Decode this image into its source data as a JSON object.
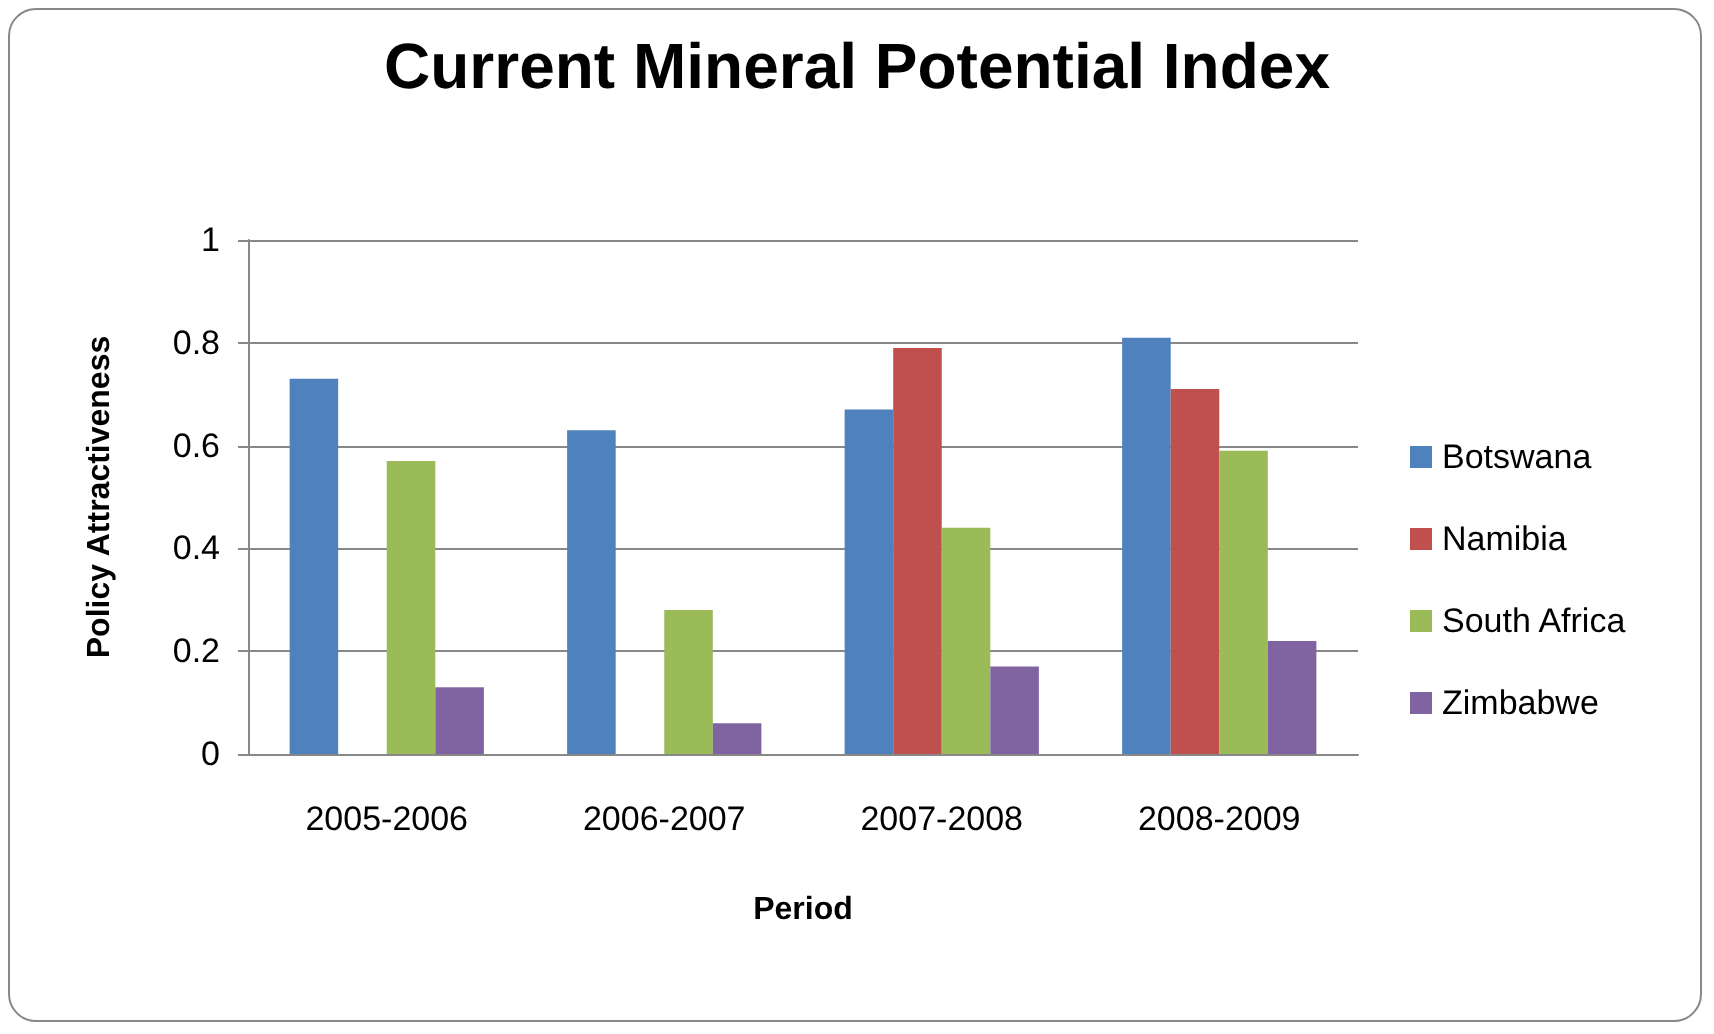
{
  "chart_data": {
    "type": "bar",
    "title": "Current Mineral Potential Index",
    "xlabel": "Period",
    "ylabel": "Policy Attractiveness",
    "categories": [
      "2005-2006",
      "2006-2007",
      "2007-2008",
      "2008-2009"
    ],
    "series": [
      {
        "name": "Botswana",
        "color": "#4f81bd",
        "values": [
          0.73,
          0.63,
          0.67,
          0.81
        ]
      },
      {
        "name": "Namibia",
        "color": "#c0504d",
        "values": [
          null,
          null,
          0.79,
          0.71
        ]
      },
      {
        "name": "South Africa",
        "color": "#9bbb59",
        "values": [
          0.57,
          0.28,
          0.44,
          0.59
        ]
      },
      {
        "name": "Zimbabwe",
        "color": "#8064a2",
        "values": [
          0.13,
          0.06,
          0.17,
          0.22
        ]
      }
    ],
    "ylim": [
      0,
      1
    ],
    "yticks": [
      0,
      0.2,
      0.4,
      0.6,
      0.8,
      1
    ],
    "grid": "y",
    "legend": "right"
  }
}
